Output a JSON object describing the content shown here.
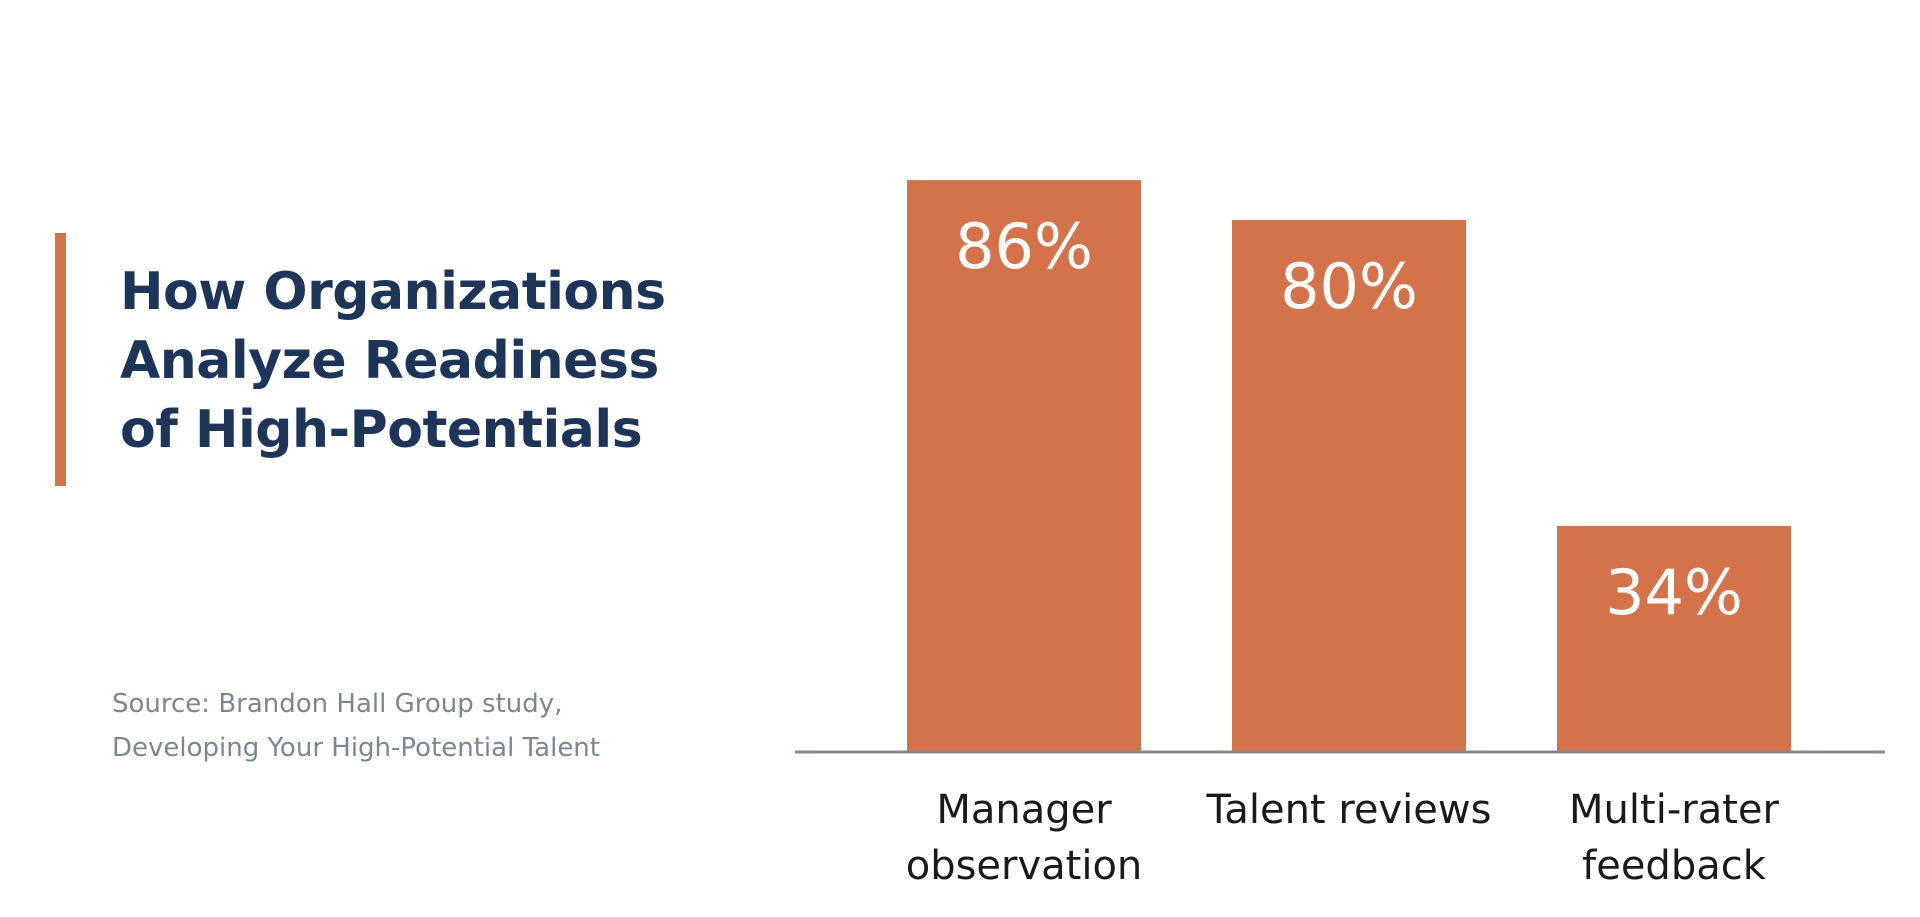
{
  "title": {
    "line1": "How Organizations",
    "line2": "Analyze Readiness",
    "line3": "of High-Potentials"
  },
  "source": {
    "line1": "Source: Brandon Hall Group study,",
    "line2": "Developing Your High-Potential Talent"
  },
  "colors": {
    "bar": "#D4734A",
    "title": "#1C3559",
    "source": "#7B8790",
    "axis": "#7F8A94",
    "label": "#1A1A1A",
    "value_label": "#FFFFFF"
  },
  "chart_data": {
    "type": "bar",
    "title": "How Organizations Analyze Readiness of High-Potentials",
    "categories": [
      "Manager observation",
      "Talent reviews",
      "Multi-rater feedback"
    ],
    "category_lines": [
      [
        "Manager",
        "observation"
      ],
      [
        "Talent reviews"
      ],
      [
        "Multi-rater",
        "feedback"
      ]
    ],
    "values": [
      86,
      80,
      34
    ],
    "data_labels": [
      "86%",
      "80%",
      "34%"
    ],
    "unit": "%",
    "xlabel": "",
    "ylabel": "",
    "ylim": [
      0,
      100
    ],
    "grid": false,
    "legend": "none"
  }
}
